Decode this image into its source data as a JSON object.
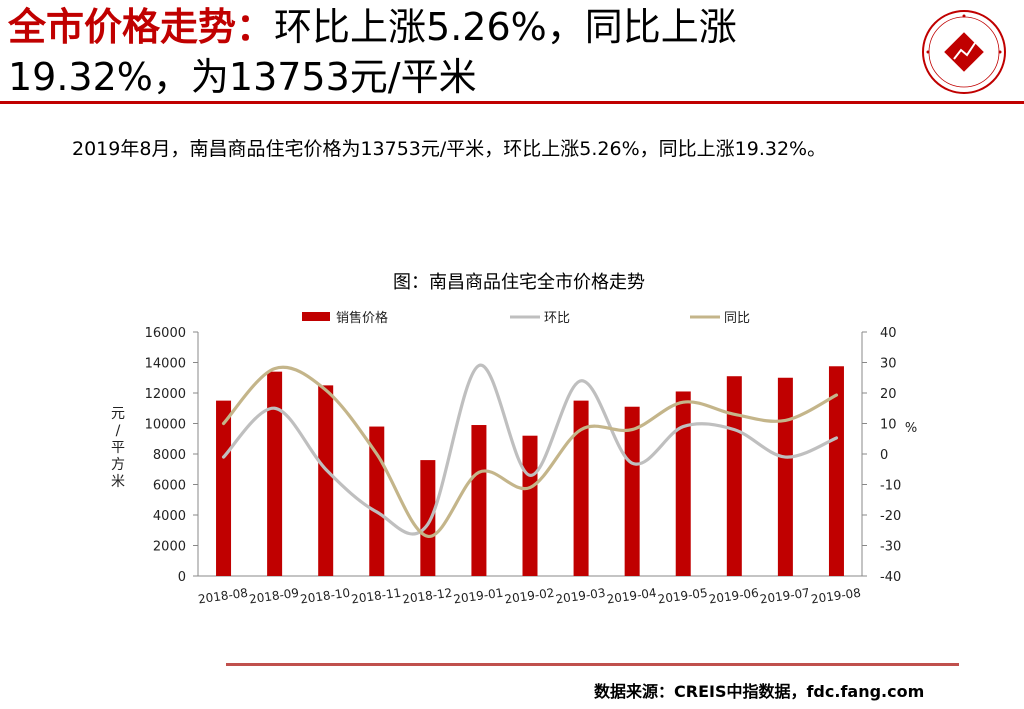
{
  "header": {
    "title_highlight": "全市价格走势：",
    "title_line1_rest": "环比上涨5.26%，同比上涨",
    "title_line2": "19.32%，为13753元/平米"
  },
  "logo": {
    "text": "中国指数研究院",
    "icon": "china-index-academy-seal",
    "color": "#c00000"
  },
  "summary_text": "2019年8月，南昌商品住宅价格为13753元/平米，环比上涨5.26%，同比上涨19.32%。",
  "source_text": "数据来源：CREIS中指数据，fdc.fang.com",
  "colors": {
    "accent": "#c00000",
    "rule": "#c0504d"
  },
  "chart_data": {
    "type": "bar",
    "title": "图：南昌商品住宅全市价格走势",
    "categories": [
      "2018-08",
      "2018-09",
      "2018-10",
      "2018-11",
      "2018-12",
      "2019-01",
      "2019-02",
      "2019-03",
      "2019-04",
      "2019-05",
      "2019-06",
      "2019-07",
      "2019-08"
    ],
    "series": [
      {
        "name": "销售价格",
        "type": "bar",
        "axis": "left",
        "color": "#c00000",
        "values": [
          11500,
          13400,
          12500,
          9800,
          7600,
          9900,
          9200,
          11500,
          11100,
          12100,
          13100,
          13000,
          13753
        ]
      },
      {
        "name": "环比",
        "type": "line",
        "axis": "right",
        "color": "#bfbfbf",
        "values": [
          -1,
          15,
          -5,
          -19,
          -23,
          29,
          -7,
          24,
          -3,
          9,
          8,
          -1,
          5.26
        ]
      },
      {
        "name": "同比",
        "type": "line",
        "axis": "right",
        "color": "#c4b58a",
        "values": [
          10,
          28,
          21,
          0,
          -27,
          -6,
          -11,
          8,
          8,
          17,
          13,
          11,
          19.32
        ]
      }
    ],
    "ylabel": "元/平方米",
    "y2label": "%",
    "ylim": [
      0,
      16000
    ],
    "y2lim": [
      -40,
      40
    ],
    "yticks": [
      "0",
      "2000",
      "4000",
      "6000",
      "8000",
      "10000",
      "12000",
      "14000",
      "16000"
    ],
    "y2ticks": [
      "-40",
      "-30",
      "-20",
      "-10",
      "0",
      "10",
      "20",
      "30",
      "40"
    ],
    "legend_position": "top",
    "grid": false
  }
}
